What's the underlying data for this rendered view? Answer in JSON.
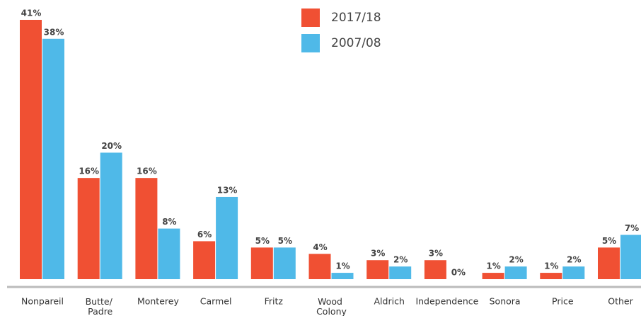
{
  "chart_data": {
    "type": "bar",
    "categories": [
      "Nonpareil",
      "Butte/ Padre",
      "Monterey",
      "Carmel",
      "Fritz",
      "Wood Colony",
      "Aldrich",
      "Independence",
      "Sonora",
      "Price",
      "Other"
    ],
    "series": [
      {
        "name": "2017/18",
        "color": "#f05033",
        "values": [
          41,
          16,
          16,
          6,
          5,
          4,
          3,
          3,
          1,
          1,
          5
        ],
        "value_labels": [
          "41%",
          "16%",
          "16%",
          "6%",
          "5%",
          "4%",
          "3%",
          "3%",
          "1%",
          "1%",
          "5%"
        ]
      },
      {
        "name": "2007/08",
        "color": "#4fb9e8",
        "values": [
          38,
          20,
          8,
          13,
          5,
          1,
          2,
          0,
          2,
          2,
          7
        ],
        "value_labels": [
          "38%",
          "20%",
          "8%",
          "13%",
          "5%",
          "1%",
          "2%",
          "0%",
          "2%",
          "2%",
          "7%"
        ]
      }
    ]
  }
}
